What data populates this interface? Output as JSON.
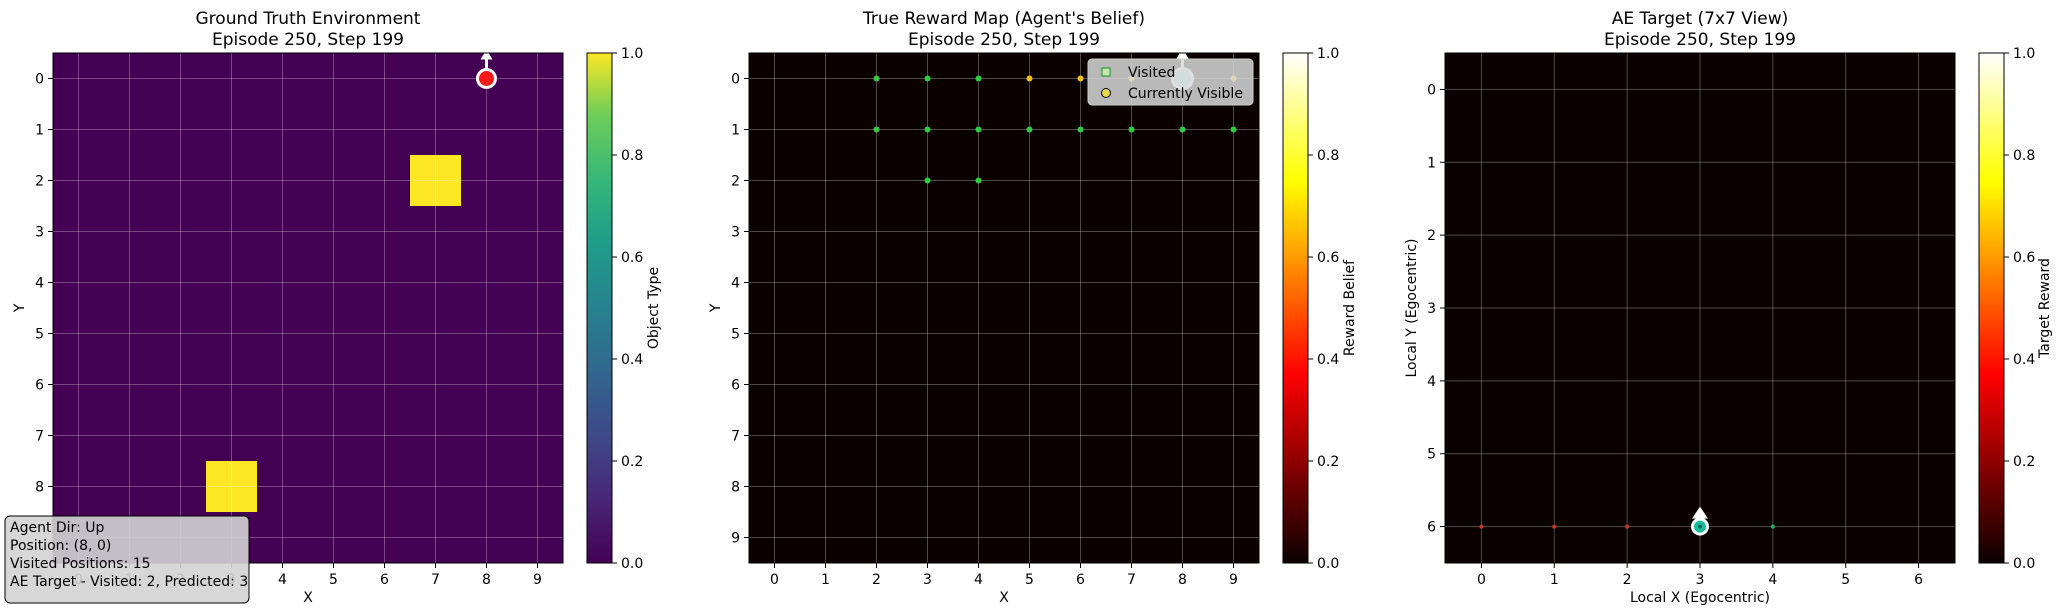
{
  "chart_data": [
    {
      "type": "heatmap",
      "title": "Ground Truth Environment\nEpisode 250, Step 199",
      "xlabel": "X",
      "ylabel": "Y",
      "x_ticks": [
        "0",
        "1",
        "2",
        "3",
        "4",
        "5",
        "6",
        "7",
        "8",
        "9"
      ],
      "y_ticks": [
        "0",
        "1",
        "2",
        "3",
        "4",
        "5",
        "6",
        "7",
        "8"
      ],
      "grid_size": [
        10,
        10
      ],
      "grid": true,
      "background_value": 0.0,
      "cells": [
        {
          "x": 7,
          "y": 2,
          "value": 1.0
        },
        {
          "x": 3,
          "y": 8,
          "value": 1.0
        }
      ],
      "agent": {
        "x": 8,
        "y": 0,
        "dir": "up",
        "color": "#ff1a1a"
      },
      "colorbar": {
        "label": "Object Type",
        "cmap": "viridis",
        "range": [
          0,
          1
        ],
        "ticks": [
          "0.0",
          "0.2",
          "0.4",
          "0.6",
          "0.8",
          "1.0"
        ]
      },
      "info_box": [
        "Agent Dir: Up",
        "Position: (8, 0)",
        "Visited Positions: 15",
        "AE Target - Visited: 2, Predicted: 3"
      ]
    },
    {
      "type": "heatmap",
      "title": "True Reward Map (Agent's Belief)\nEpisode 250, Step 199",
      "xlabel": "X",
      "ylabel": "Y",
      "x_ticks": [
        "0",
        "1",
        "2",
        "3",
        "4",
        "5",
        "6",
        "7",
        "8",
        "9"
      ],
      "y_ticks": [
        "0",
        "1",
        "2",
        "3",
        "4",
        "5",
        "6",
        "7",
        "8",
        "9"
      ],
      "grid_size": [
        10,
        10
      ],
      "grid": true,
      "background_value": 0.0,
      "visited": [
        [
          2,
          0
        ],
        [
          3,
          0
        ],
        [
          4,
          0
        ],
        [
          2,
          1
        ],
        [
          3,
          1
        ],
        [
          4,
          1
        ],
        [
          5,
          1
        ],
        [
          6,
          1
        ],
        [
          7,
          1
        ],
        [
          8,
          1
        ],
        [
          9,
          1
        ],
        [
          3,
          2
        ],
        [
          4,
          2
        ]
      ],
      "visible": [
        [
          5,
          0
        ],
        [
          6,
          0
        ],
        [
          7,
          0
        ],
        [
          9,
          0
        ]
      ],
      "agent": {
        "x": 8,
        "y": 0,
        "dir": "up",
        "color": "#a8e6e6"
      },
      "legend": {
        "position": "top-right",
        "entries": [
          "Visited",
          "Currently Visible"
        ]
      },
      "colorbar": {
        "label": "Reward Belief",
        "cmap": "hot",
        "range": [
          0,
          1
        ],
        "ticks": [
          "0.0",
          "0.2",
          "0.4",
          "0.6",
          "0.8",
          "1.0"
        ]
      }
    },
    {
      "type": "heatmap",
      "title": "AE Target (7x7 View)\nEpisode 250, Step 199",
      "xlabel": "Local X (Egocentric)",
      "ylabel": "Local Y (Egocentric)",
      "x_ticks": [
        "0",
        "1",
        "2",
        "3",
        "4",
        "5",
        "6"
      ],
      "y_ticks": [
        "0",
        "1",
        "2",
        "3",
        "4",
        "5",
        "6"
      ],
      "grid_size": [
        7,
        7
      ],
      "grid": true,
      "background_value": 0.0,
      "red_points": [
        [
          0,
          6
        ],
        [
          1,
          6
        ],
        [
          2,
          6
        ]
      ],
      "green_points": [
        [
          4,
          6
        ]
      ],
      "agent": {
        "x": 3,
        "y": 6,
        "dir": "up",
        "color": "#1abc9c"
      },
      "colorbar": {
        "label": "Target Reward",
        "cmap": "hot",
        "range": [
          0,
          1
        ],
        "ticks": [
          "0.0",
          "0.2",
          "0.4",
          "0.6",
          "0.8",
          "1.0"
        ]
      }
    }
  ]
}
